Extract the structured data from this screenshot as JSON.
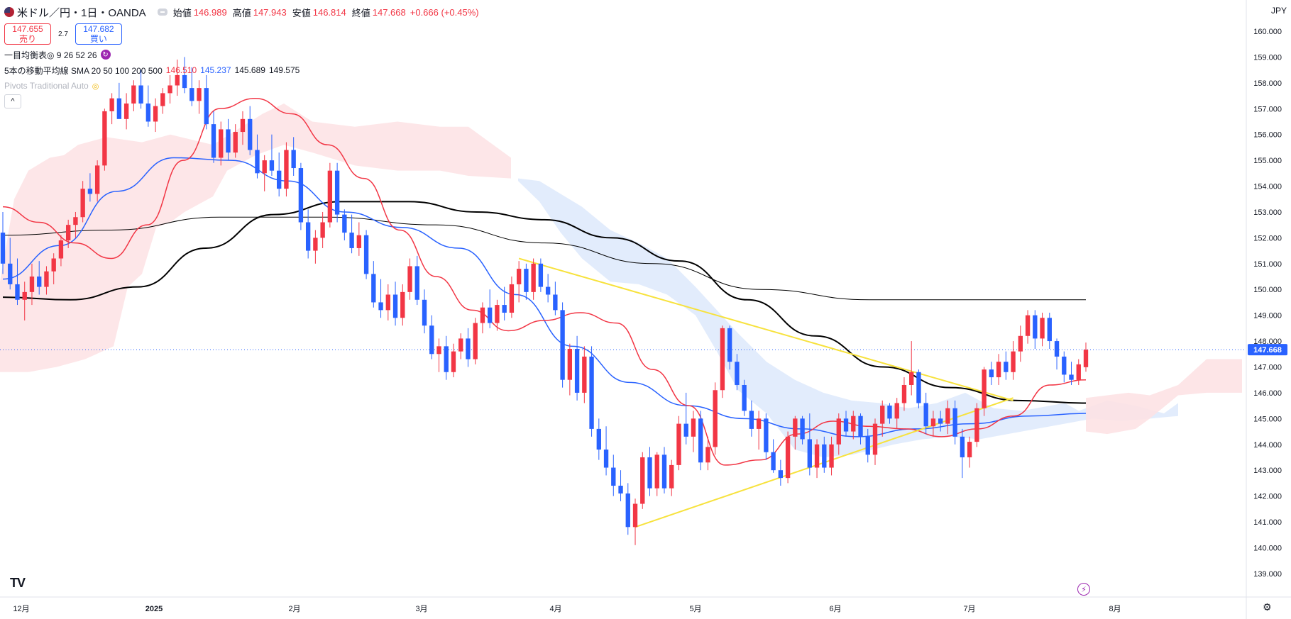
{
  "header": {
    "symbol": "米ドル／円・1日・OANDA",
    "open_label": "始値",
    "open_value": "146.989",
    "high_label": "高値",
    "high_value": "147.943",
    "low_label": "安値",
    "low_value": "146.814",
    "close_label": "終値",
    "close_value": "147.668",
    "change": "+0.666 (+0.45%)"
  },
  "trade": {
    "sell_price": "147.655",
    "sell_label": "売り",
    "spread": "2.7",
    "buy_price": "147.682",
    "buy_label": "買い"
  },
  "indicators": {
    "ichimoku": "一目均衡表◎ 9 26 52 26",
    "sma_label": "5本の移動平均線 SMA 20 50 100 200 500",
    "sma_values": [
      "146.510",
      "145.237",
      "145.689",
      "149.575"
    ],
    "pivots": "Pivots Traditional Auto"
  },
  "currency_label": "JPY",
  "colors": {
    "up": "#f23645",
    "down": "#2962ff",
    "sma20": "#f23645",
    "sma50": "#2962ff",
    "sma100": "#000000",
    "sma200": "#000000",
    "trendline": "#f7e23d",
    "cloud_bull": "#fde2e4",
    "cloud_bear": "#dde9fb"
  },
  "icons": [
    "collapse-icon",
    "refresh-icon",
    "eye-icon",
    "chevron-up-icon",
    "tradingview-logo-icon",
    "lightning-icon",
    "gear-icon"
  ],
  "chart_data": {
    "type": "candlestick",
    "symbol": "USD/JPY",
    "timeframe": "1D",
    "ylim": [
      138.5,
      160.5
    ],
    "y_ticks": [
      "139.000",
      "140.000",
      "141.000",
      "142.000",
      "143.000",
      "144.000",
      "145.000",
      "146.000",
      "147.000",
      "148.000",
      "149.000",
      "150.000",
      "151.000",
      "152.000",
      "153.000",
      "154.000",
      "155.000",
      "156.000",
      "157.000",
      "158.000",
      "159.000",
      "160.000"
    ],
    "x_ticks": [
      "12月",
      "2025",
      "2月",
      "3月",
      "4月",
      "5月",
      "6月",
      "7月",
      "8月"
    ],
    "current_price": "147.668",
    "candles": [
      [
        152.2,
        153.0,
        150.6,
        151.0
      ],
      [
        151.0,
        152.0,
        150.0,
        150.2
      ],
      [
        150.2,
        151.2,
        149.4,
        149.6
      ],
      [
        149.6,
        150.3,
        148.8,
        149.9
      ],
      [
        149.9,
        151.0,
        149.4,
        150.5
      ],
      [
        150.5,
        151.1,
        149.8,
        150.1
      ],
      [
        150.1,
        150.9,
        149.8,
        150.7
      ],
      [
        150.7,
        151.4,
        150.2,
        151.2
      ],
      [
        151.2,
        152.1,
        150.9,
        151.9
      ],
      [
        151.9,
        152.7,
        151.6,
        152.5
      ],
      [
        152.5,
        153.0,
        152.0,
        152.8
      ],
      [
        152.8,
        154.2,
        152.6,
        153.9
      ],
      [
        153.9,
        154.5,
        153.4,
        153.7
      ],
      [
        153.7,
        155.0,
        153.4,
        154.8
      ],
      [
        154.8,
        157.0,
        154.6,
        156.9
      ],
      [
        156.9,
        157.6,
        156.4,
        157.4
      ],
      [
        157.4,
        158.0,
        156.8,
        156.6
      ],
      [
        156.6,
        157.6,
        156.2,
        157.2
      ],
      [
        157.2,
        158.1,
        156.9,
        157.9
      ],
      [
        157.9,
        158.5,
        157.0,
        157.2
      ],
      [
        157.2,
        157.9,
        156.3,
        156.5
      ],
      [
        156.5,
        157.4,
        156.1,
        157.1
      ],
      [
        157.1,
        157.8,
        156.8,
        157.6
      ],
      [
        157.6,
        158.3,
        157.2,
        157.9
      ],
      [
        157.9,
        158.9,
        157.5,
        158.3
      ],
      [
        158.3,
        159.0,
        157.6,
        157.8
      ],
      [
        157.8,
        158.6,
        157.1,
        157.3
      ],
      [
        157.3,
        158.1,
        156.8,
        157.8
      ],
      [
        157.8,
        158.3,
        156.2,
        156.4
      ],
      [
        156.4,
        156.9,
        154.9,
        155.1
      ],
      [
        155.1,
        156.5,
        154.8,
        156.2
      ],
      [
        156.2,
        156.6,
        155.0,
        155.3
      ],
      [
        155.3,
        156.4,
        155.1,
        156.1
      ],
      [
        156.1,
        156.9,
        155.6,
        156.6
      ],
      [
        156.6,
        157.1,
        155.2,
        155.4
      ],
      [
        155.4,
        156.0,
        154.3,
        154.5
      ],
      [
        154.5,
        155.2,
        153.8,
        155.0
      ],
      [
        155.0,
        156.0,
        154.4,
        154.6
      ],
      [
        154.6,
        155.3,
        153.6,
        153.9
      ],
      [
        153.9,
        155.7,
        153.6,
        155.4
      ],
      [
        155.4,
        155.9,
        154.4,
        154.7
      ],
      [
        154.7,
        154.9,
        152.3,
        152.6
      ],
      [
        152.6,
        153.1,
        151.2,
        151.5
      ],
      [
        151.5,
        152.3,
        151.0,
        152.0
      ],
      [
        152.0,
        153.0,
        151.6,
        152.6
      ],
      [
        152.6,
        154.9,
        152.4,
        154.6
      ],
      [
        154.6,
        154.9,
        152.6,
        152.9
      ],
      [
        152.9,
        153.1,
        151.9,
        152.2
      ],
      [
        152.2,
        152.9,
        151.4,
        151.6
      ],
      [
        151.6,
        152.6,
        151.3,
        152.1
      ],
      [
        152.1,
        152.3,
        150.4,
        150.6
      ],
      [
        150.6,
        151.1,
        149.3,
        149.5
      ],
      [
        149.5,
        150.4,
        148.9,
        149.2
      ],
      [
        149.2,
        150.2,
        148.8,
        149.8
      ],
      [
        149.8,
        150.3,
        148.6,
        148.9
      ],
      [
        148.9,
        150.2,
        148.6,
        149.9
      ],
      [
        149.9,
        151.2,
        149.6,
        150.9
      ],
      [
        150.9,
        151.3,
        149.4,
        149.6
      ],
      [
        149.6,
        150.0,
        148.3,
        148.6
      ],
      [
        148.6,
        149.0,
        147.3,
        147.5
      ],
      [
        147.5,
        148.1,
        146.8,
        147.8
      ],
      [
        147.8,
        148.2,
        146.5,
        146.8
      ],
      [
        146.8,
        147.9,
        146.6,
        147.6
      ],
      [
        147.6,
        148.3,
        147.3,
        148.1
      ],
      [
        148.1,
        148.5,
        147.0,
        147.3
      ],
      [
        147.3,
        148.9,
        147.1,
        148.7
      ],
      [
        148.7,
        149.5,
        148.3,
        149.3
      ],
      [
        149.3,
        150.0,
        148.5,
        148.7
      ],
      [
        148.7,
        149.6,
        148.4,
        149.4
      ],
      [
        149.4,
        150.1,
        148.8,
        149.1
      ],
      [
        149.1,
        150.5,
        148.9,
        150.2
      ],
      [
        150.2,
        151.1,
        149.5,
        150.8
      ],
      [
        150.8,
        151.0,
        149.6,
        149.9
      ],
      [
        149.9,
        151.2,
        149.6,
        151.0
      ],
      [
        151.0,
        151.2,
        149.9,
        150.1
      ],
      [
        150.1,
        150.6,
        149.5,
        149.8
      ],
      [
        149.8,
        150.3,
        149.0,
        149.2
      ],
      [
        149.2,
        149.5,
        146.2,
        146.5
      ],
      [
        146.5,
        147.9,
        145.9,
        147.7
      ],
      [
        147.7,
        148.2,
        145.7,
        146.0
      ],
      [
        146.0,
        147.8,
        145.6,
        147.4
      ],
      [
        147.4,
        147.8,
        144.3,
        144.6
      ],
      [
        144.6,
        145.0,
        143.4,
        143.8
      ],
      [
        143.8,
        144.7,
        142.8,
        143.1
      ],
      [
        143.1,
        143.6,
        142.0,
        142.4
      ],
      [
        142.4,
        143.0,
        141.8,
        142.1
      ],
      [
        142.1,
        142.5,
        140.5,
        140.8
      ],
      [
        140.8,
        141.9,
        140.1,
        141.7
      ],
      [
        141.7,
        143.7,
        141.5,
        143.5
      ],
      [
        143.5,
        143.9,
        142.0,
        142.3
      ],
      [
        142.3,
        143.7,
        142.0,
        143.6
      ],
      [
        143.6,
        143.9,
        142.1,
        142.3
      ],
      [
        142.3,
        143.4,
        142.0,
        143.2
      ],
      [
        143.2,
        145.1,
        143.0,
        144.8
      ],
      [
        144.8,
        146.0,
        144.0,
        144.3
      ],
      [
        144.3,
        145.3,
        143.7,
        145.0
      ],
      [
        145.0,
        145.3,
        143.0,
        143.3
      ],
      [
        143.3,
        144.3,
        143.0,
        143.9
      ],
      [
        143.9,
        146.4,
        143.6,
        146.1
      ],
      [
        146.1,
        148.6,
        145.8,
        148.5
      ],
      [
        148.5,
        148.6,
        146.9,
        147.2
      ],
      [
        147.2,
        147.5,
        146.1,
        146.3
      ],
      [
        146.3,
        146.5,
        145.1,
        145.3
      ],
      [
        145.3,
        145.7,
        144.3,
        144.6
      ],
      [
        144.6,
        145.3,
        143.8,
        145.0
      ],
      [
        145.0,
        145.2,
        143.4,
        143.7
      ],
      [
        143.7,
        144.2,
        142.9,
        143.0
      ],
      [
        143.0,
        143.4,
        142.4,
        142.7
      ],
      [
        142.7,
        144.5,
        142.5,
        144.3
      ],
      [
        144.3,
        145.1,
        143.8,
        145.0
      ],
      [
        145.0,
        145.1,
        144.0,
        144.2
      ],
      [
        144.2,
        145.2,
        142.8,
        143.1
      ],
      [
        143.1,
        144.2,
        142.7,
        144.0
      ],
      [
        144.0,
        144.3,
        142.9,
        143.1
      ],
      [
        143.1,
        144.3,
        142.8,
        144.0
      ],
      [
        144.0,
        145.2,
        143.6,
        145.0
      ],
      [
        145.0,
        145.3,
        144.3,
        144.5
      ],
      [
        144.5,
        145.3,
        144.2,
        145.1
      ],
      [
        145.1,
        145.2,
        144.0,
        144.3
      ],
      [
        144.3,
        144.6,
        143.3,
        143.6
      ],
      [
        143.6,
        145.0,
        143.2,
        144.8
      ],
      [
        144.8,
        145.7,
        144.3,
        145.5
      ],
      [
        145.5,
        145.6,
        144.8,
        145.0
      ],
      [
        145.0,
        145.8,
        144.6,
        145.6
      ],
      [
        145.6,
        146.6,
        145.3,
        146.3
      ],
      [
        146.3,
        148.0,
        145.9,
        146.8
      ],
      [
        146.8,
        146.9,
        145.4,
        145.6
      ],
      [
        145.6,
        146.0,
        144.4,
        144.7
      ],
      [
        144.7,
        145.3,
        144.3,
        145.0
      ],
      [
        145.0,
        145.3,
        144.5,
        144.8
      ],
      [
        144.8,
        145.7,
        144.4,
        145.4
      ],
      [
        145.4,
        145.7,
        144.0,
        144.3
      ],
      [
        144.3,
        144.6,
        142.7,
        143.5
      ],
      [
        143.5,
        144.3,
        143.1,
        144.1
      ],
      [
        144.1,
        145.6,
        143.9,
        145.4
      ],
      [
        145.4,
        147.0,
        145.1,
        146.9
      ],
      [
        146.9,
        147.2,
        146.3,
        146.6
      ],
      [
        146.6,
        147.5,
        146.3,
        147.2
      ],
      [
        147.2,
        147.6,
        146.5,
        146.8
      ],
      [
        146.8,
        148.0,
        146.5,
        147.6
      ],
      [
        147.6,
        148.6,
        147.2,
        148.2
      ],
      [
        148.2,
        149.2,
        147.9,
        149.0
      ],
      [
        149.0,
        149.2,
        147.7,
        148.1
      ],
      [
        148.1,
        149.1,
        147.8,
        148.9
      ],
      [
        148.9,
        149.1,
        147.7,
        148.0
      ],
      [
        148.0,
        148.1,
        146.9,
        147.4
      ],
      [
        147.4,
        147.6,
        146.4,
        146.7
      ],
      [
        146.7,
        147.2,
        146.3,
        146.5
      ],
      [
        146.5,
        147.3,
        146.3,
        147.1
      ],
      [
        146.989,
        147.943,
        146.814,
        147.668
      ]
    ],
    "sma20_values": [
      153.2,
      152.6,
      151.8,
      151.2,
      152.5,
      155.0,
      157.0,
      157.4,
      156.8,
      155.6,
      154.3,
      152.3,
      150.5,
      149.2,
      148.4,
      148.8,
      149.1,
      148.7,
      146.9,
      145.5,
      143.2,
      143.4,
      144.4,
      144.9,
      144.7,
      144.6,
      144.3,
      144.6,
      145.1,
      146.3,
      146.5
    ],
    "sma50_values": [
      150.4,
      151.7,
      153.8,
      155.1,
      155.0,
      154.2,
      153.0,
      152.4,
      151.6,
      149.8,
      147.8,
      146.4,
      145.5,
      145.0,
      144.6,
      144.3,
      144.6,
      144.8,
      145.1,
      145.2
    ],
    "sma100_values": [
      149.7,
      149.6,
      150.1,
      151.6,
      152.9,
      153.4,
      153.4,
      153.0,
      152.7,
      152.0,
      151.1,
      149.6,
      148.2,
      147.0,
      146.2,
      145.7,
      145.6
    ],
    "sma200_values": [
      152.1,
      152.3,
      152.8,
      152.8,
      152.5,
      151.8,
      151.0,
      150.0,
      149.6,
      149.6,
      149.6
    ],
    "trendlines": [
      [
        [
          151.2,
          148.0
        ],
        [
          145.8
        ]
      ],
      [
        [
          140.8
        ],
        [
          145.8
        ]
      ]
    ]
  }
}
